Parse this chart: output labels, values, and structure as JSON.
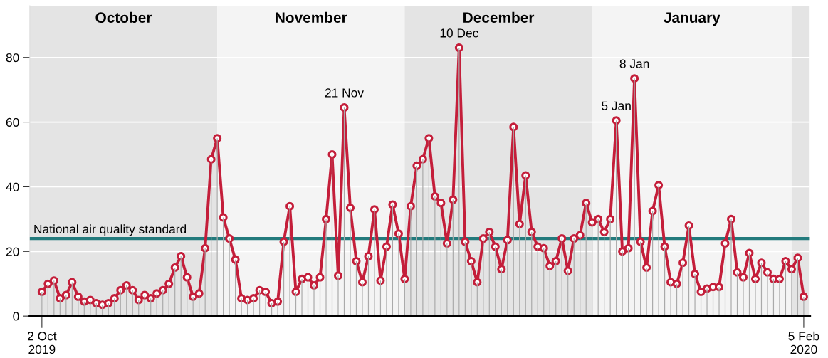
{
  "chart_data": {
    "type": "line",
    "x": [
      "2019-10-02",
      "2019-10-03",
      "2019-10-04",
      "2019-10-05",
      "2019-10-06",
      "2019-10-07",
      "2019-10-08",
      "2019-10-09",
      "2019-10-10",
      "2019-10-11",
      "2019-10-12",
      "2019-10-13",
      "2019-10-14",
      "2019-10-15",
      "2019-10-16",
      "2019-10-17",
      "2019-10-18",
      "2019-10-19",
      "2019-10-20",
      "2019-10-21",
      "2019-10-22",
      "2019-10-23",
      "2019-10-24",
      "2019-10-25",
      "2019-10-26",
      "2019-10-27",
      "2019-10-28",
      "2019-10-29",
      "2019-10-30",
      "2019-10-31",
      "2019-11-01",
      "2019-11-02",
      "2019-11-03",
      "2019-11-04",
      "2019-11-05",
      "2019-11-06",
      "2019-11-07",
      "2019-11-08",
      "2019-11-09",
      "2019-11-10",
      "2019-11-11",
      "2019-11-12",
      "2019-11-13",
      "2019-11-14",
      "2019-11-15",
      "2019-11-16",
      "2019-11-17",
      "2019-11-18",
      "2019-11-19",
      "2019-11-20",
      "2019-11-21",
      "2019-11-22",
      "2019-11-23",
      "2019-11-24",
      "2019-11-25",
      "2019-11-26",
      "2019-11-27",
      "2019-11-28",
      "2019-11-29",
      "2019-11-30",
      "2019-12-01",
      "2019-12-02",
      "2019-12-03",
      "2019-12-04",
      "2019-12-05",
      "2019-12-06",
      "2019-12-07",
      "2019-12-08",
      "2019-12-09",
      "2019-12-10",
      "2019-12-11",
      "2019-12-12",
      "2019-12-13",
      "2019-12-14",
      "2019-12-15",
      "2019-12-16",
      "2019-12-17",
      "2019-12-18",
      "2019-12-19",
      "2019-12-20",
      "2019-12-21",
      "2019-12-22",
      "2019-12-23",
      "2019-12-24",
      "2019-12-25",
      "2019-12-26",
      "2019-12-27",
      "2019-12-28",
      "2019-12-29",
      "2019-12-30",
      "2019-12-31",
      "2020-01-01",
      "2020-01-02",
      "2020-01-03",
      "2020-01-04",
      "2020-01-05",
      "2020-01-06",
      "2020-01-07",
      "2020-01-08",
      "2020-01-09",
      "2020-01-10",
      "2020-01-11",
      "2020-01-12",
      "2020-01-13",
      "2020-01-14",
      "2020-01-15",
      "2020-01-16",
      "2020-01-17",
      "2020-01-18",
      "2020-01-19",
      "2020-01-20",
      "2020-01-21",
      "2020-01-22",
      "2020-01-23",
      "2020-01-24",
      "2020-01-25",
      "2020-01-26",
      "2020-01-27",
      "2020-01-28",
      "2020-01-29",
      "2020-01-30",
      "2020-01-31",
      "2020-02-01",
      "2020-02-02",
      "2020-02-03",
      "2020-02-04",
      "2020-02-05"
    ],
    "series": [
      {
        "type": "bar",
        "color": "#aaaaaa",
        "values": [
          7.5,
          10,
          11,
          5.5,
          6.5,
          10.5,
          6,
          4.5,
          5,
          4,
          3.5,
          4,
          5.5,
          8,
          9.5,
          8,
          5,
          6.5,
          5.5,
          7,
          8,
          10,
          15,
          18.5,
          12,
          6,
          7,
          21,
          48.5,
          55,
          30.5,
          24,
          17.5,
          5.5,
          5,
          5.5,
          8,
          7.5,
          4,
          4.5,
          23,
          34,
          7.5,
          11.5,
          12,
          9.5,
          12,
          30,
          50,
          12.5,
          64.5,
          33.5,
          17,
          10.5,
          18.5,
          33,
          11,
          21.5,
          34.5,
          25.5,
          11.5,
          34,
          46.5,
          48.5,
          55,
          37,
          35,
          22.5,
          36,
          83,
          23,
          17,
          10.5,
          24,
          26,
          21.5,
          14.5,
          23.5,
          58.5,
          28.5,
          43.5,
          26,
          21.5,
          21,
          15.5,
          17,
          24,
          14,
          24,
          25,
          35,
          29,
          30,
          26,
          30,
          60.5,
          20,
          21,
          73.5,
          23,
          15,
          32.5,
          40.5,
          21.5,
          10.5,
          10,
          16.5,
          28,
          13,
          7.5,
          8.5,
          9,
          9,
          22.5,
          30,
          13.5,
          12,
          19.5,
          11.5,
          16.5,
          13.5,
          11.5,
          11.5,
          17,
          14.5,
          18,
          6
        ]
      },
      {
        "color": "#c41e3a",
        "values": [
          7.5,
          10,
          11,
          5.5,
          6.5,
          10.5,
          6,
          4.5,
          5,
          4,
          3.5,
          4,
          5.5,
          8,
          9.5,
          8,
          5,
          6.5,
          5.5,
          7,
          8,
          10,
          15,
          18.5,
          12,
          6,
          7,
          21,
          48.5,
          55,
          30.5,
          24,
          17.5,
          5.5,
          5,
          5.5,
          8,
          7.5,
          4,
          4.5,
          23,
          34,
          7.5,
          11.5,
          12,
          9.5,
          12,
          30,
          50,
          12.5,
          64.5,
          33.5,
          17,
          10.5,
          18.5,
          33,
          11,
          21.5,
          34.5,
          25.5,
          11.5,
          34,
          46.5,
          48.5,
          55,
          37,
          35,
          22.5,
          36,
          83,
          23,
          17,
          10.5,
          24,
          26,
          21.5,
          14.5,
          23.5,
          58.5,
          28.5,
          43.5,
          26,
          21.5,
          21,
          15.5,
          17,
          24,
          14,
          24,
          25,
          35,
          29,
          30,
          26,
          30,
          60.5,
          20,
          21,
          73.5,
          23,
          15,
          32.5,
          40.5,
          21.5,
          10.5,
          10,
          16.5,
          28,
          13,
          7.5,
          8.5,
          9,
          9,
          22.5,
          30,
          13.5,
          12,
          19.5,
          11.5,
          16.5,
          13.5,
          11.5,
          11.5,
          17,
          14.5,
          18,
          6
        ]
      }
    ],
    "xlim": [
      "2019-09-30",
      "2020-02-06"
    ],
    "xticks": [
      {
        "value": "2019-10-02",
        "label": "2 Oct\n2019"
      },
      {
        "value": "2020-02-05",
        "label": "5 Feb\n2020"
      }
    ],
    "ylim": [
      0,
      96
    ],
    "yticks": [
      0,
      20,
      40,
      60,
      80
    ],
    "grid": "y",
    "marker": "circle",
    "line_style": "solid",
    "ref_lines": [
      {
        "axis": "y",
        "value": 24,
        "label": "National air quality standard",
        "color": "#237a7c"
      }
    ],
    "bands": [
      {
        "axis": "x",
        "from": "2019-09-30",
        "to": "2019-10-31",
        "label": "October",
        "color": "#e4e4e4"
      },
      {
        "axis": "x",
        "from": "2019-10-31",
        "to": "2019-12-01",
        "label": "November",
        "color": "#f4f4f4"
      },
      {
        "axis": "x",
        "from": "2019-12-01",
        "to": "2020-01-01",
        "label": "December",
        "color": "#e4e4e4"
      },
      {
        "axis": "x",
        "from": "2020-01-01",
        "to": "2020-02-03",
        "label": "January",
        "color": "#f4f4f4"
      },
      {
        "axis": "x",
        "from": "2020-02-03",
        "to": "2020-02-06",
        "label": null,
        "color": "#e4e4e4"
      }
    ],
    "annotations": [
      {
        "text": "21 Nov",
        "x": "2019-11-21",
        "y": 64.5
      },
      {
        "text": "10 Dec",
        "x": "2019-12-10",
        "y": 83
      },
      {
        "text": "5 Jan",
        "x": "2020-01-05",
        "y": 60.5
      },
      {
        "text": "8 Jan",
        "x": "2020-01-08",
        "y": 73.5
      }
    ]
  }
}
